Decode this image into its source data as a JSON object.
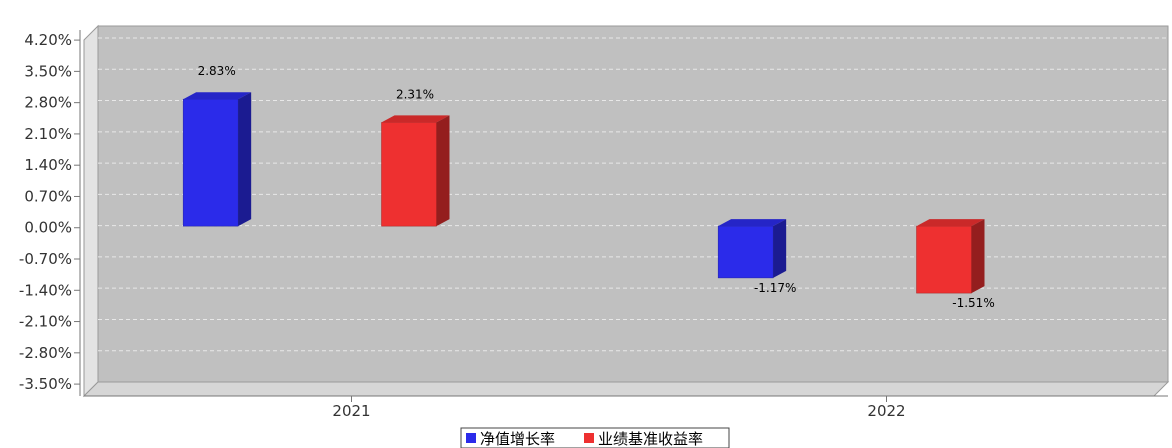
{
  "chart_data": {
    "type": "bar",
    "categories": [
      "2021",
      "2022"
    ],
    "series": [
      {
        "name": "净值增长率",
        "color": "#2b2bea",
        "values": [
          2.83,
          -1.17
        ],
        "labels": [
          "2.83%",
          "-1.17%"
        ]
      },
      {
        "name": "业绩基准收益率",
        "color": "#ee3030",
        "values": [
          2.31,
          -1.51
        ],
        "labels": [
          "2.31%",
          "-1.51%"
        ]
      }
    ],
    "yticks": [
      "4.20%",
      "3.50%",
      "2.80%",
      "2.10%",
      "1.40%",
      "0.70%",
      "0.00%",
      "-0.70%",
      "-1.40%",
      "-2.10%",
      "-2.80%",
      "-3.50%"
    ],
    "ylim": [
      -3.5,
      4.2
    ],
    "grid": true,
    "legend_position": "bottom-center",
    "plot_background": "#c0c0c0"
  }
}
